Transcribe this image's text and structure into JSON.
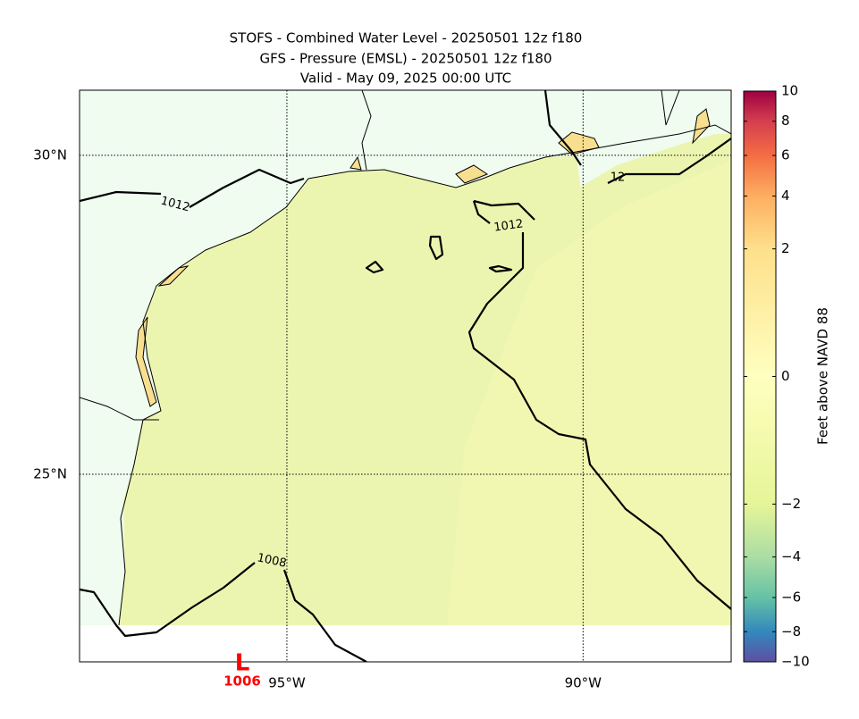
{
  "header": {
    "title_lines": [
      "STOFS - Combined Water Level - 20250501 12z f180",
      "GFS - Pressure (EMSL) - 20250501 12z f180",
      "Valid - May 09, 2025 00:00 UTC"
    ]
  },
  "map": {
    "lonlim": [
      -98.5,
      -87.5
    ],
    "latlim": [
      22.06,
      31.02
    ],
    "lon_ticks": [
      {
        "value": -95,
        "label": "95°W"
      },
      {
        "value": -90,
        "label": "90°W"
      }
    ],
    "lat_ticks": [
      {
        "value": 25,
        "label": "25°N"
      },
      {
        "value": 30,
        "label": "30°N"
      }
    ],
    "contour_labels": [
      "1012",
      "1012",
      "12",
      "1008"
    ],
    "low": {
      "symbol": "L",
      "label": "1006"
    }
  },
  "colorbar": {
    "label": "Feet above NAVD 88",
    "range": [
      -10,
      10
    ],
    "colors": [
      "#5e4fa2",
      "#3288bd",
      "#66c2a5",
      "#abdda4",
      "#e6f598",
      "#ffffbf",
      "#fee08b",
      "#fdae61",
      "#f46d43",
      "#d53e4f",
      "#9e0142"
    ],
    "ticks": [
      10,
      8,
      6,
      4,
      2,
      0,
      {
        "value": -2,
        "label": "−2"
      },
      {
        "value": -4,
        "label": "−4"
      },
      {
        "value": -6,
        "label": "−6"
      },
      {
        "value": -8,
        "label": "−8"
      },
      {
        "value": -10,
        "label": "−10"
      }
    ]
  }
}
